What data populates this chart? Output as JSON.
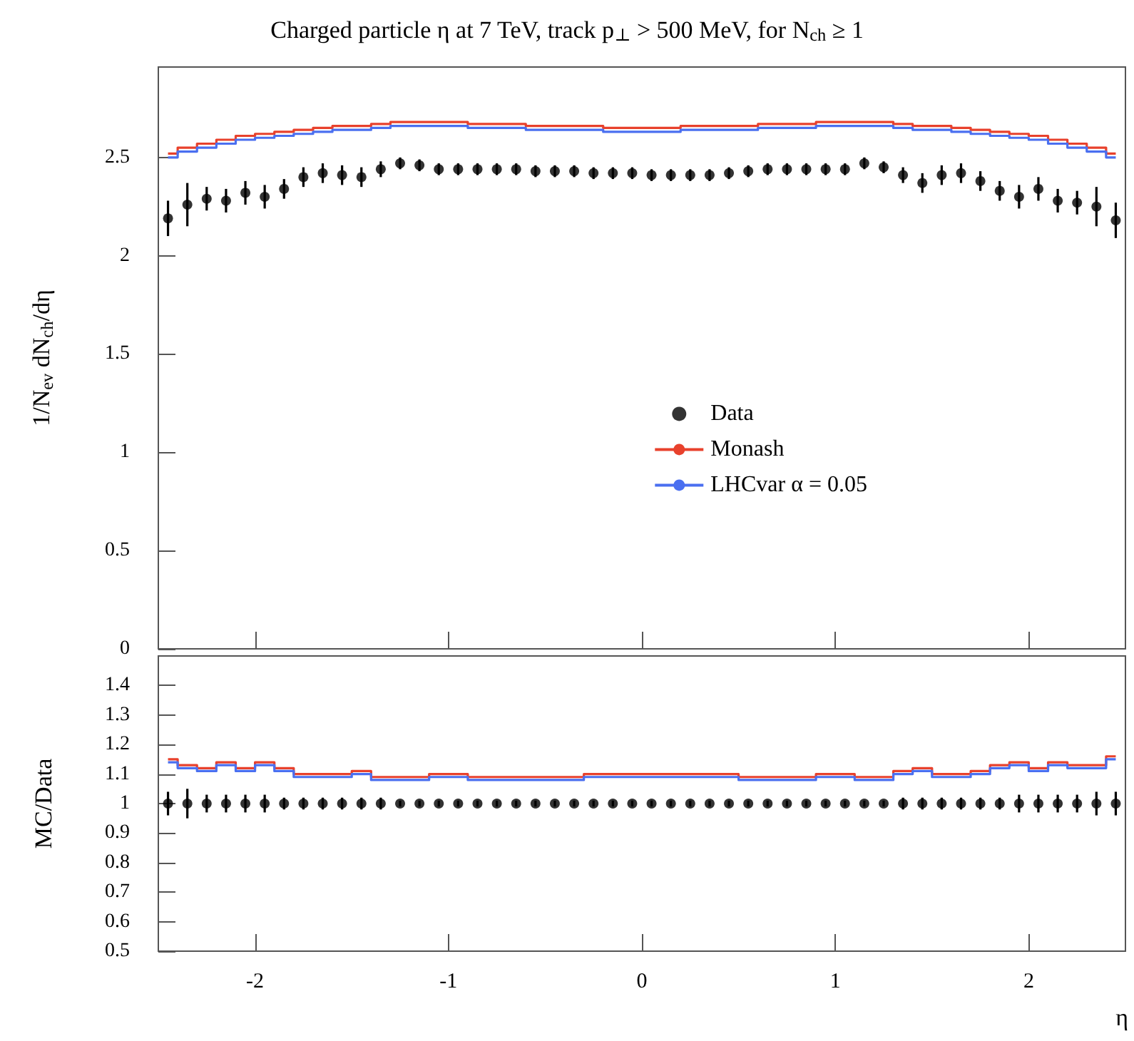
{
  "chart_data": [
    {
      "type": "step",
      "title": "Charged particle η at 7 TeV, track p$_{⊥}$ > 500 MeV, for N$_{ch}$ ≥ 1",
      "ylabel": "1/N$_{ev}$ dN$_{ch}$/dη",
      "x": [
        -2.45,
        -2.35,
        -2.25,
        -2.15,
        -2.05,
        -1.95,
        -1.85,
        -1.75,
        -1.65,
        -1.55,
        -1.45,
        -1.35,
        -1.25,
        -1.15,
        -1.05,
        -0.95,
        -0.85,
        -0.75,
        -0.65,
        -0.55,
        -0.45,
        -0.35,
        -0.25,
        -0.15,
        -0.05,
        0.05,
        0.15,
        0.25,
        0.35,
        0.45,
        0.55,
        0.65,
        0.75,
        0.85,
        0.95,
        1.05,
        1.15,
        1.25,
        1.35,
        1.45,
        1.55,
        1.65,
        1.75,
        1.85,
        1.95,
        2.05,
        2.15,
        2.25,
        2.35,
        2.45
      ],
      "xlim": [
        -2.5,
        2.5
      ],
      "xticks": [
        -2,
        -1,
        0,
        1,
        2
      ],
      "ylim": [
        0,
        2.96
      ],
      "yticks": [
        0,
        0.5,
        1,
        1.5,
        2,
        2.5
      ],
      "tick_labels": "y",
      "grid": false,
      "legend": "right",
      "series": [
        {
          "name": "Data",
          "type": "scatter",
          "marker": "circle",
          "color": "#000000",
          "values": [
            2.19,
            2.26,
            2.29,
            2.28,
            2.32,
            2.3,
            2.34,
            2.4,
            2.42,
            2.41,
            2.4,
            2.44,
            2.47,
            2.46,
            2.44,
            2.44,
            2.44,
            2.44,
            2.44,
            2.43,
            2.43,
            2.43,
            2.42,
            2.42,
            2.42,
            2.41,
            2.41,
            2.41,
            2.41,
            2.42,
            2.43,
            2.44,
            2.44,
            2.44,
            2.44,
            2.44,
            2.47,
            2.45,
            2.41,
            2.37,
            2.41,
            2.42,
            2.38,
            2.33,
            2.3,
            2.34,
            2.28,
            2.27,
            2.25,
            2.18
          ],
          "errors": [
            0.09,
            0.11,
            0.06,
            0.06,
            0.06,
            0.06,
            0.05,
            0.05,
            0.05,
            0.05,
            0.05,
            0.04,
            0.03,
            0.03,
            0.03,
            0.03,
            0.03,
            0.03,
            0.03,
            0.03,
            0.03,
            0.03,
            0.03,
            0.03,
            0.03,
            0.03,
            0.03,
            0.03,
            0.03,
            0.03,
            0.03,
            0.03,
            0.03,
            0.03,
            0.03,
            0.03,
            0.03,
            0.03,
            0.04,
            0.05,
            0.05,
            0.05,
            0.05,
            0.05,
            0.06,
            0.06,
            0.06,
            0.06,
            0.1,
            0.09
          ]
        },
        {
          "name": "Monash",
          "color": "#e8412c",
          "values": [
            2.52,
            2.55,
            2.57,
            2.59,
            2.61,
            2.62,
            2.63,
            2.64,
            2.65,
            2.66,
            2.66,
            2.67,
            2.68,
            2.68,
            2.68,
            2.68,
            2.67,
            2.67,
            2.67,
            2.66,
            2.66,
            2.66,
            2.66,
            2.65,
            2.65,
            2.65,
            2.65,
            2.66,
            2.66,
            2.66,
            2.66,
            2.67,
            2.67,
            2.67,
            2.68,
            2.68,
            2.68,
            2.68,
            2.67,
            2.66,
            2.66,
            2.65,
            2.64,
            2.63,
            2.62,
            2.61,
            2.59,
            2.57,
            2.55,
            2.52
          ]
        },
        {
          "name": "LHCvar α = 0.05",
          "color": "#4a6ff0",
          "values": [
            2.5,
            2.53,
            2.55,
            2.57,
            2.59,
            2.6,
            2.61,
            2.62,
            2.63,
            2.64,
            2.64,
            2.65,
            2.66,
            2.66,
            2.66,
            2.66,
            2.65,
            2.65,
            2.65,
            2.64,
            2.64,
            2.64,
            2.64,
            2.63,
            2.63,
            2.63,
            2.63,
            2.64,
            2.64,
            2.64,
            2.64,
            2.65,
            2.65,
            2.65,
            2.66,
            2.66,
            2.66,
            2.66,
            2.65,
            2.64,
            2.64,
            2.63,
            2.62,
            2.61,
            2.6,
            2.59,
            2.57,
            2.55,
            2.53,
            2.5
          ]
        }
      ]
    },
    {
      "type": "step",
      "ylabel": "MC/Data",
      "xlabel": "η",
      "x": [
        -2.45,
        -2.35,
        -2.25,
        -2.15,
        -2.05,
        -1.95,
        -1.85,
        -1.75,
        -1.65,
        -1.55,
        -1.45,
        -1.35,
        -1.25,
        -1.15,
        -1.05,
        -0.95,
        -0.85,
        -0.75,
        -0.65,
        -0.55,
        -0.45,
        -0.35,
        -0.25,
        -0.15,
        -0.05,
        0.05,
        0.15,
        0.25,
        0.35,
        0.45,
        0.55,
        0.65,
        0.75,
        0.85,
        0.95,
        1.05,
        1.15,
        1.25,
        1.35,
        1.45,
        1.55,
        1.65,
        1.75,
        1.85,
        1.95,
        2.05,
        2.15,
        2.25,
        2.35,
        2.45
      ],
      "xlim": [
        -2.5,
        2.5
      ],
      "xticks": [
        -2,
        -1,
        0,
        1,
        2
      ],
      "ylim": [
        0.5,
        1.5
      ],
      "yticks": [
        0.5,
        0.6,
        0.7,
        0.8,
        0.9,
        1,
        1.1,
        1.2,
        1.3,
        1.4
      ],
      "grid": false,
      "series": [
        {
          "color": "#e8412c",
          "values": [
            1.15,
            1.13,
            1.12,
            1.14,
            1.12,
            1.14,
            1.12,
            1.1,
            1.1,
            1.1,
            1.11,
            1.09,
            1.09,
            1.09,
            1.1,
            1.1,
            1.09,
            1.09,
            1.09,
            1.09,
            1.09,
            1.09,
            1.1,
            1.1,
            1.1,
            1.1,
            1.1,
            1.1,
            1.1,
            1.1,
            1.09,
            1.09,
            1.09,
            1.09,
            1.1,
            1.1,
            1.09,
            1.09,
            1.11,
            1.12,
            1.1,
            1.1,
            1.11,
            1.13,
            1.14,
            1.12,
            1.14,
            1.13,
            1.13,
            1.16
          ]
        },
        {
          "color": "#4a6ff0",
          "values": [
            1.14,
            1.12,
            1.11,
            1.13,
            1.11,
            1.13,
            1.11,
            1.09,
            1.09,
            1.09,
            1.1,
            1.08,
            1.08,
            1.08,
            1.09,
            1.09,
            1.08,
            1.08,
            1.08,
            1.08,
            1.08,
            1.08,
            1.09,
            1.09,
            1.09,
            1.09,
            1.09,
            1.09,
            1.09,
            1.09,
            1.08,
            1.08,
            1.08,
            1.08,
            1.09,
            1.09,
            1.08,
            1.08,
            1.1,
            1.11,
            1.09,
            1.09,
            1.1,
            1.12,
            1.13,
            1.11,
            1.13,
            1.12,
            1.12,
            1.15
          ]
        },
        {
          "type": "scatter",
          "marker": "circle",
          "color": "#000000",
          "values": [
            1,
            1,
            1,
            1,
            1,
            1,
            1,
            1,
            1,
            1,
            1,
            1,
            1,
            1,
            1,
            1,
            1,
            1,
            1,
            1,
            1,
            1,
            1,
            1,
            1,
            1,
            1,
            1,
            1,
            1,
            1,
            1,
            1,
            1,
            1,
            1,
            1,
            1,
            1,
            1,
            1,
            1,
            1,
            1,
            1,
            1,
            1,
            1,
            1,
            1
          ],
          "errors": [
            0.04,
            0.05,
            0.03,
            0.03,
            0.03,
            0.03,
            0.02,
            0.02,
            0.02,
            0.02,
            0.02,
            0.02,
            0.01,
            0.01,
            0.01,
            0.01,
            0.01,
            0.01,
            0.01,
            0.01,
            0.01,
            0.01,
            0.01,
            0.01,
            0.01,
            0.01,
            0.01,
            0.01,
            0.01,
            0.01,
            0.01,
            0.01,
            0.01,
            0.01,
            0.01,
            0.01,
            0.01,
            0.01,
            0.02,
            0.02,
            0.02,
            0.02,
            0.02,
            0.02,
            0.03,
            0.03,
            0.03,
            0.03,
            0.04,
            0.04
          ]
        }
      ]
    }
  ]
}
